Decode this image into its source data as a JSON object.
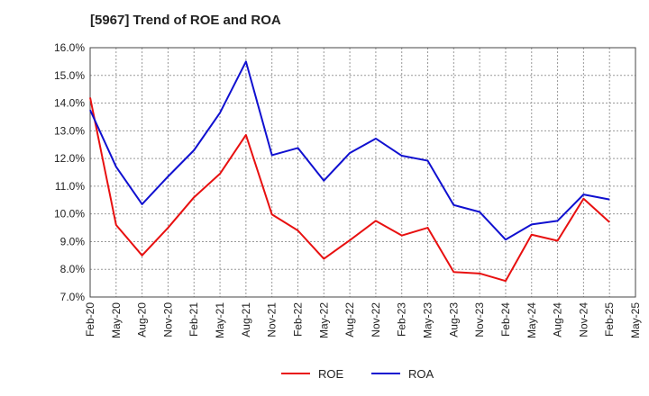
{
  "chart_data": {
    "type": "line",
    "title": "[5967]  Trend of ROE and ROA",
    "xlabel": "",
    "ylabel": "",
    "ylim": [
      7.0,
      16.0
    ],
    "grid": true,
    "legend_position": "bottom",
    "x": [
      "Feb-20",
      "May-20",
      "Aug-20",
      "Nov-20",
      "Feb-21",
      "May-21",
      "Aug-21",
      "Nov-21",
      "Feb-22",
      "May-22",
      "Aug-22",
      "Nov-22",
      "Feb-23",
      "May-23",
      "Aug-23",
      "Nov-23",
      "Feb-24",
      "May-24",
      "Aug-24",
      "Nov-24",
      "Feb-25",
      "May-25"
    ],
    "y_ticks": [
      "7.0%",
      "8.0%",
      "9.0%",
      "10.0%",
      "11.0%",
      "12.0%",
      "13.0%",
      "14.0%",
      "15.0%",
      "16.0%"
    ],
    "series": [
      {
        "name": "ROE",
        "color": "#e81010",
        "values": [
          14.2,
          9.6,
          8.5,
          9.5,
          10.6,
          11.45,
          12.85,
          9.98,
          9.4,
          8.38,
          9.05,
          9.75,
          9.22,
          9.5,
          7.9,
          7.85,
          7.58,
          9.25,
          9.03,
          10.55,
          9.7,
          null
        ]
      },
      {
        "name": "ROA",
        "color": "#1010d0",
        "values": [
          13.75,
          11.7,
          10.35,
          11.35,
          12.3,
          13.65,
          15.5,
          12.12,
          12.38,
          11.2,
          12.2,
          12.72,
          12.1,
          11.92,
          10.32,
          10.07,
          9.07,
          9.62,
          9.75,
          10.7,
          10.52,
          null
        ]
      }
    ]
  }
}
